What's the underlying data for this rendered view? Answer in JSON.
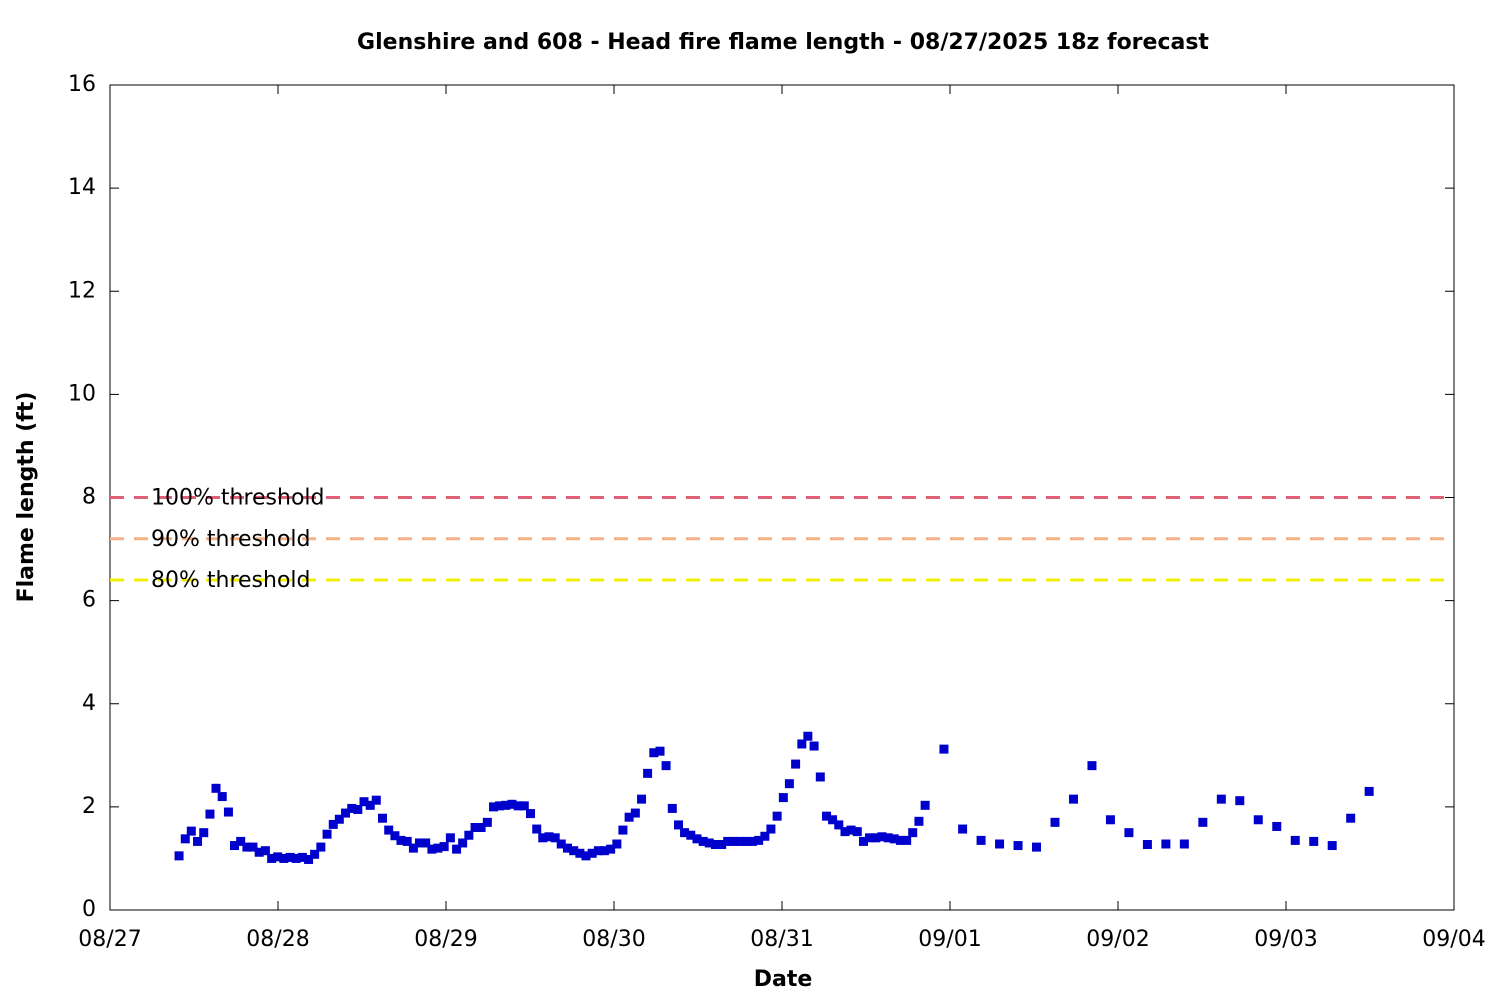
{
  "chart_data": {
    "type": "scatter",
    "title": "Glenshire and 608 - Head fire flame length - 08/27/2025 18z forecast",
    "x_label": "Date",
    "y_label": "Flame length (ft)",
    "color": "#0000cc",
    "x": [
      0.411,
      0.448,
      0.484,
      0.521,
      0.558,
      0.595,
      0.631,
      0.668,
      0.705,
      0.741,
      0.778,
      0.815,
      0.851,
      0.888,
      0.925,
      0.962,
      0.998,
      1.035,
      1.072,
      1.108,
      1.145,
      1.182,
      1.218,
      1.255,
      1.292,
      1.329,
      1.365,
      1.402,
      1.439,
      1.475,
      1.512,
      1.549,
      1.585,
      1.622,
      1.659,
      1.696,
      1.732,
      1.769,
      1.806,
      1.842,
      1.879,
      1.916,
      1.952,
      1.989,
      2.026,
      2.063,
      2.099,
      2.136,
      2.173,
      2.209,
      2.246,
      2.283,
      2.319,
      2.356,
      2.393,
      2.43,
      2.466,
      2.503,
      2.54,
      2.576,
      2.613,
      2.65,
      2.686,
      2.723,
      2.76,
      2.797,
      2.833,
      2.87,
      2.907,
      2.943,
      2.98,
      3.017,
      3.053,
      3.09,
      3.127,
      3.164,
      3.2,
      3.237,
      3.274,
      3.31,
      3.347,
      3.384,
      3.42,
      3.457,
      3.494,
      3.531,
      3.567,
      3.604,
      3.641,
      3.677,
      3.714,
      3.751,
      3.787,
      3.824,
      3.861,
      3.898,
      3.934,
      3.971,
      4.008,
      4.044,
      4.081,
      4.118,
      4.154,
      4.191,
      4.228,
      4.265,
      4.301,
      4.338,
      4.375,
      4.411,
      4.448,
      4.485,
      4.521,
      4.558,
      4.595,
      4.632,
      4.668,
      4.705,
      4.742,
      4.778,
      4.815,
      4.852,
      4.964,
      5.075,
      5.185,
      5.295,
      5.405,
      5.515,
      5.625,
      5.735,
      5.845,
      5.955,
      6.065,
      6.175,
      6.285,
      6.395,
      6.505,
      6.615,
      6.725,
      6.835,
      6.945,
      7.055,
      7.165,
      7.275,
      7.385,
      7.495
    ],
    "values": [
      1.05,
      1.38,
      1.53,
      1.33,
      1.5,
      1.86,
      2.36,
      2.2,
      1.9,
      1.25,
      1.33,
      1.22,
      1.22,
      1.12,
      1.15,
      1.0,
      1.03,
      1.0,
      1.02,
      1.0,
      1.02,
      0.98,
      1.08,
      1.22,
      1.47,
      1.66,
      1.76,
      1.88,
      1.97,
      1.95,
      2.1,
      2.03,
      2.13,
      1.78,
      1.55,
      1.44,
      1.35,
      1.33,
      1.2,
      1.3,
      1.3,
      1.18,
      1.2,
      1.23,
      1.4,
      1.18,
      1.3,
      1.45,
      1.6,
      1.6,
      1.7,
      2.0,
      2.02,
      2.03,
      2.05,
      2.02,
      2.02,
      1.87,
      1.57,
      1.4,
      1.42,
      1.4,
      1.28,
      1.2,
      1.15,
      1.1,
      1.05,
      1.1,
      1.15,
      1.15,
      1.18,
      1.28,
      1.55,
      1.8,
      1.88,
      2.15,
      2.65,
      3.05,
      3.08,
      2.8,
      1.97,
      1.65,
      1.5,
      1.45,
      1.38,
      1.33,
      1.3,
      1.27,
      1.27,
      1.33,
      1.33,
      1.33,
      1.33,
      1.33,
      1.35,
      1.43,
      1.57,
      1.82,
      2.18,
      2.45,
      2.83,
      3.22,
      3.37,
      3.18,
      2.58,
      1.82,
      1.75,
      1.65,
      1.52,
      1.55,
      1.52,
      1.33,
      1.4,
      1.4,
      1.42,
      1.4,
      1.38,
      1.35,
      1.35,
      1.5,
      1.72,
      2.03,
      3.12,
      1.57,
      1.35,
      1.28,
      1.25,
      1.22,
      1.7,
      2.15,
      2.8,
      1.75,
      1.5,
      1.27,
      1.28,
      1.28,
      1.7,
      2.15,
      2.12,
      1.75,
      1.62,
      1.35,
      1.33,
      1.25,
      1.78,
      2.3
    ],
    "thresholds": [
      {
        "label": "100% threshold",
        "value": 8,
        "color": "#e06078"
      },
      {
        "label": "90% threshold",
        "value": 7.2,
        "color": "#f4b183"
      },
      {
        "label": "80% threshold",
        "value": 6.4,
        "color": "#f0f000"
      }
    ],
    "xlim": [
      0,
      8
    ],
    "xticks": [
      {
        "value": 0,
        "label": "08/27"
      },
      {
        "value": 1,
        "label": "08/28"
      },
      {
        "value": 2,
        "label": "08/29"
      },
      {
        "value": 3,
        "label": "08/30"
      },
      {
        "value": 4,
        "label": "08/31"
      },
      {
        "value": 5,
        "label": "09/01"
      },
      {
        "value": 6,
        "label": "09/02"
      },
      {
        "value": 7,
        "label": "09/03"
      },
      {
        "value": 8,
        "label": "09/04"
      }
    ],
    "ylim": [
      0,
      16
    ],
    "yticks": [
      0,
      2,
      4,
      6,
      8,
      10,
      12,
      14,
      16
    ]
  }
}
